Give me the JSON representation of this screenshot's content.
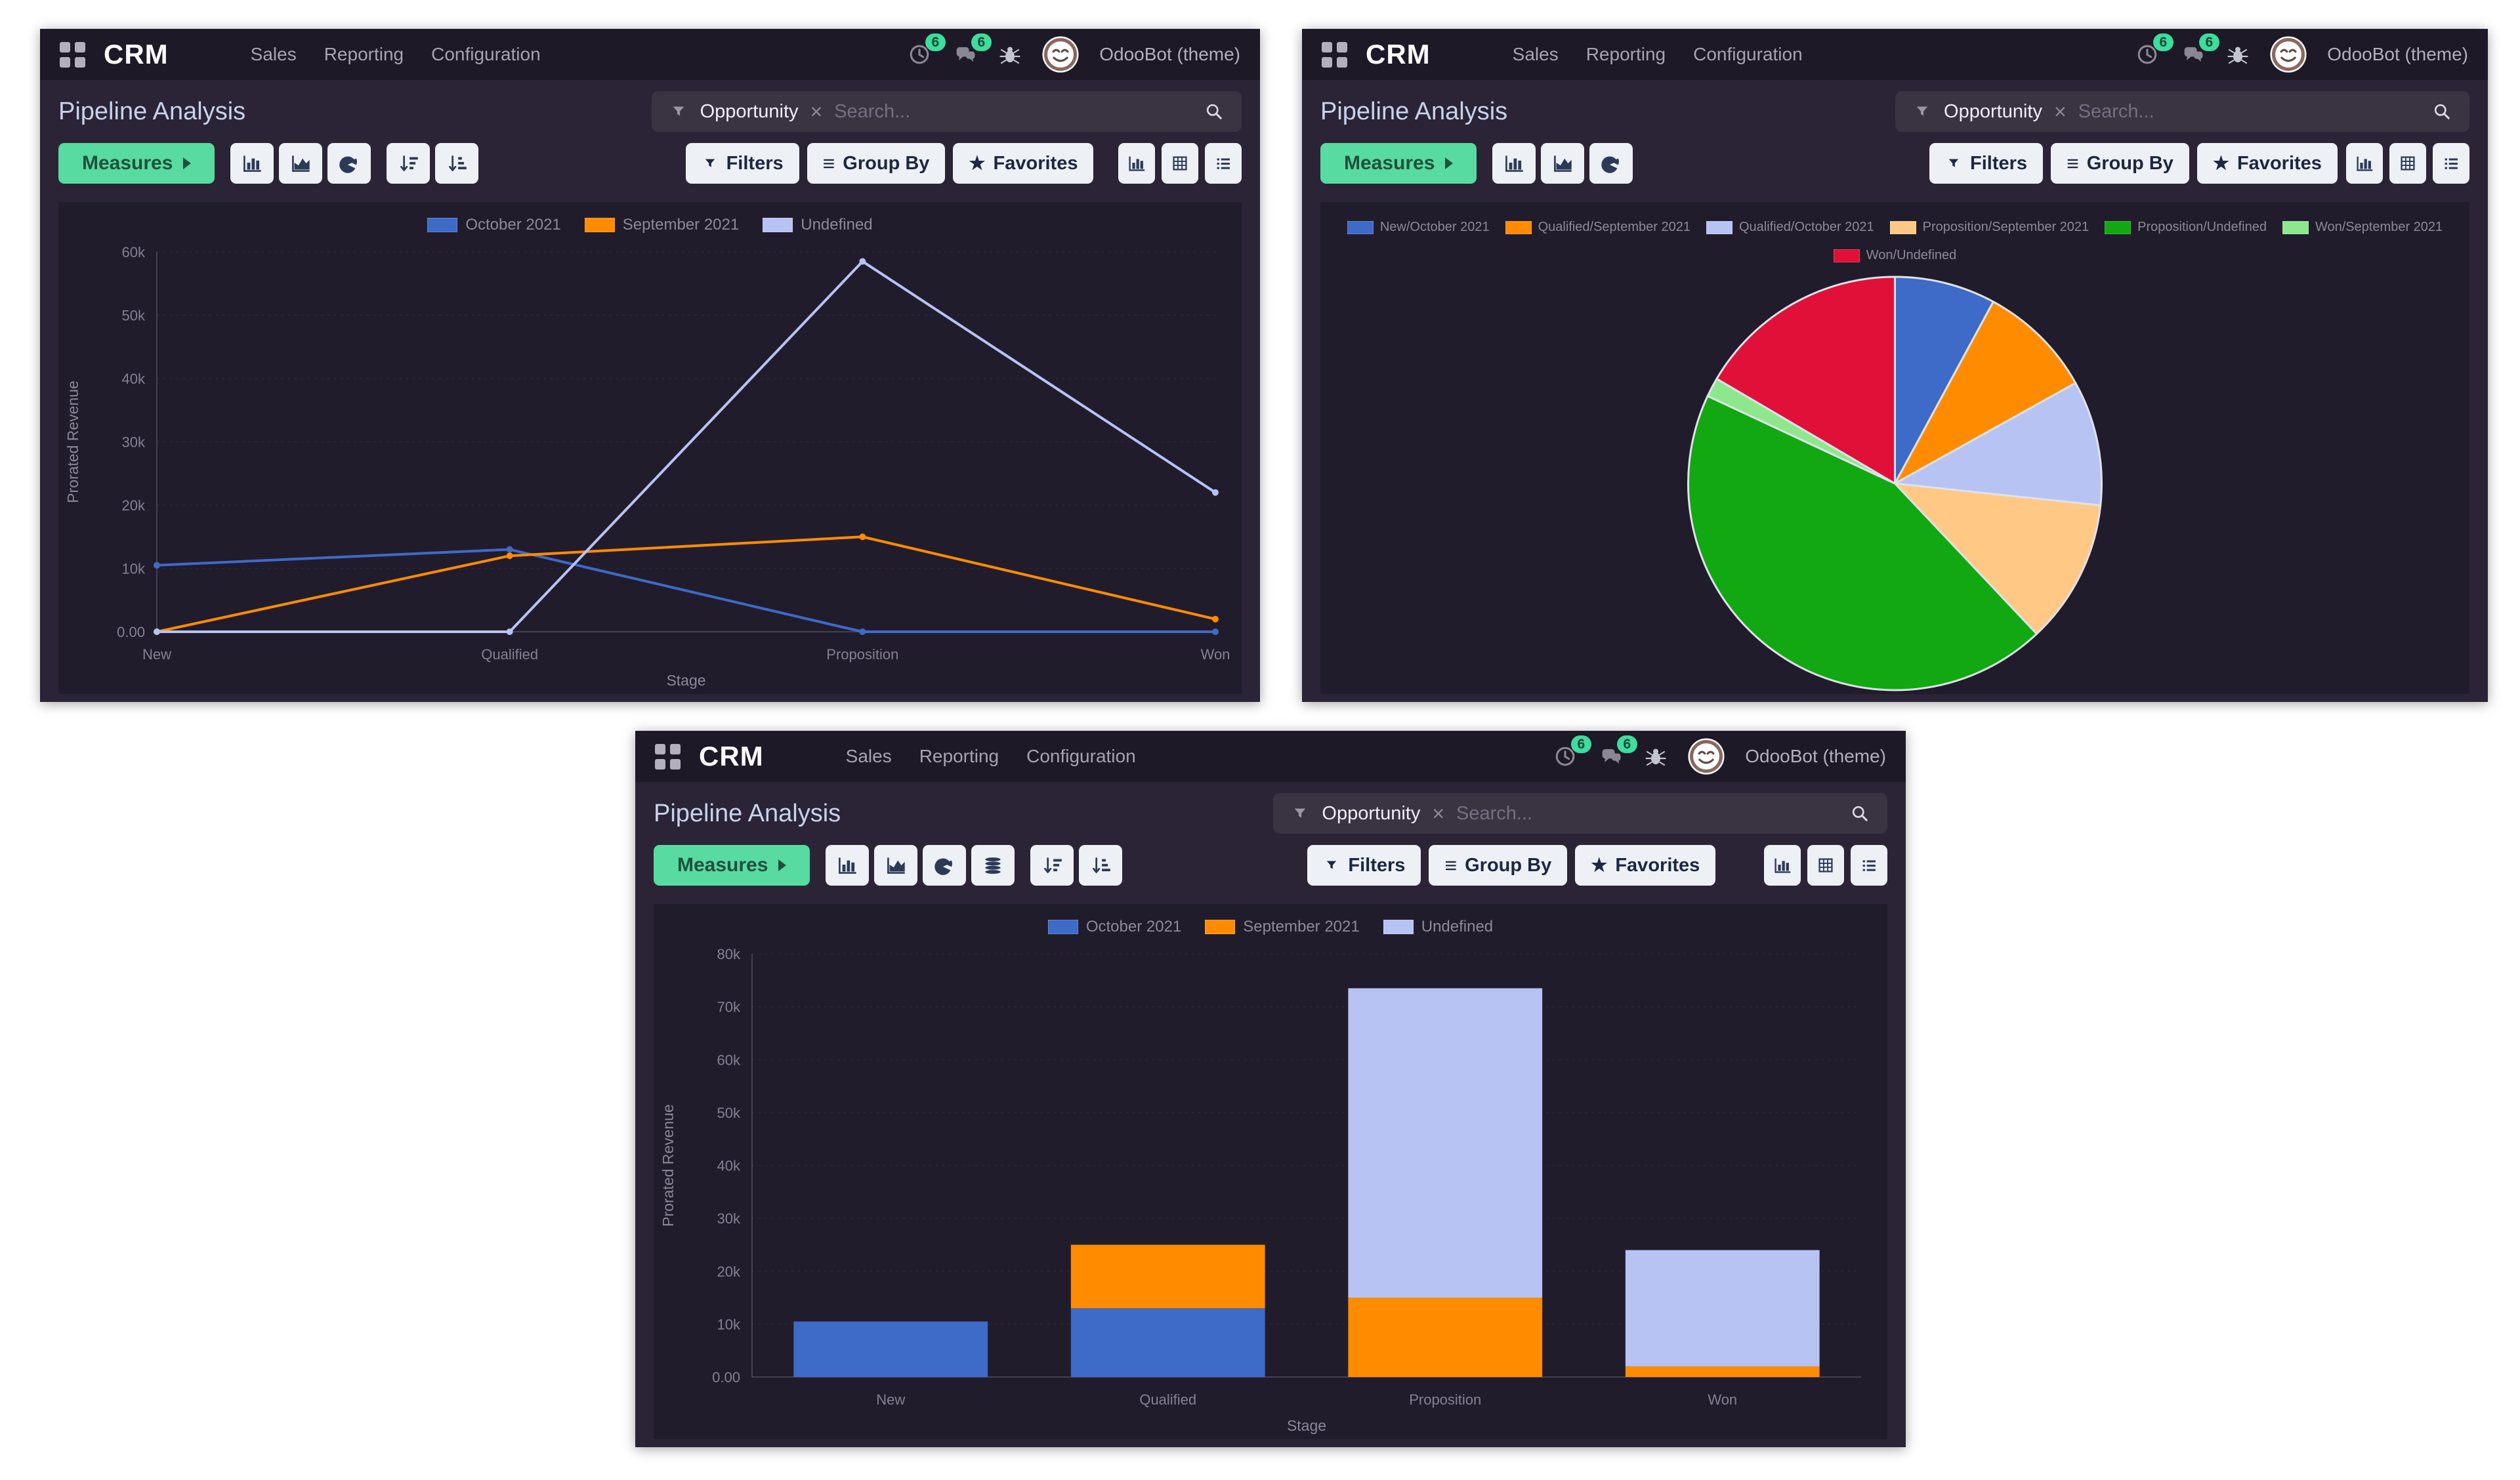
{
  "shared": {
    "app_name": "CRM",
    "menu": [
      "Sales",
      "Reporting",
      "Configuration"
    ],
    "systray": {
      "activity_count": "6",
      "message_count": "6",
      "user_name": "OdooBot (theme)"
    },
    "title": "Pipeline Analysis",
    "search": {
      "facet": "Opportunity",
      "remove_glyph": "×",
      "placeholder": "Search..."
    },
    "buttons": {
      "measures": "Measures",
      "filters": "Filters",
      "group_by": "Group By",
      "favorites": "Favorites"
    },
    "icons": {
      "group_by_glyph": "≡",
      "favorites_glyph": "★",
      "apps": "apps-grid",
      "activities": "clock",
      "messages": "chat-bubbles",
      "debug": "bug",
      "search": "magnifier",
      "view_switcher": [
        "graph-view",
        "pivot-view",
        "list-view"
      ],
      "chart_type_buttons": [
        "bar-chart",
        "area-chart",
        "pie-chart"
      ],
      "extra_buttons_line_window": [
        "sort-desc",
        "sort-asc"
      ],
      "extra_buttons_bar_window": [
        "stacked",
        "sort-desc",
        "sort-asc"
      ]
    },
    "colors": {
      "accent_green": "#57dba0",
      "badge_green": "#3edd9d",
      "navbar_bg": "#1d1927",
      "content_bg": "#2a2436",
      "panel_bg": "#211c2c"
    }
  },
  "chart_data": [
    {
      "id": "line",
      "type": "line",
      "title": "Pipeline Analysis (line view)",
      "xlabel": "Stage",
      "ylabel": "Prorated Revenue",
      "categories": [
        "New",
        "Qualified",
        "Proposition",
        "Won"
      ],
      "series": [
        {
          "name": "October 2021",
          "color": "#3e6ac8",
          "values": [
            10500,
            13000,
            0,
            0
          ]
        },
        {
          "name": "September 2021",
          "color": "#ff8c00",
          "values": [
            0,
            12000,
            15000,
            2000
          ]
        },
        {
          "name": "Undefined",
          "color": "#b7c3f3",
          "values": [
            0,
            0,
            58500,
            22000
          ]
        }
      ],
      "ylim": [
        0,
        60000
      ],
      "ytick_step": 10000,
      "ytick_labels": [
        "0.00",
        "10k",
        "20k",
        "30k",
        "40k",
        "50k",
        "60k"
      ],
      "grid": "horizontal-dashed",
      "legend_position": "top-center"
    },
    {
      "id": "pie",
      "type": "pie",
      "title": "Pipeline Analysis (pie view)",
      "slices": [
        {
          "label": "New/October 2021",
          "color": "#3e6ac8",
          "value": 10500
        },
        {
          "label": "Qualified/September 2021",
          "color": "#ff8c00",
          "value": 12000
        },
        {
          "label": "Qualified/October 2021",
          "color": "#b7c3f3",
          "value": 13000
        },
        {
          "label": "Proposition/September 2021",
          "color": "#ffc885",
          "value": 15000
        },
        {
          "label": "Proposition/Undefined",
          "color": "#12a812",
          "value": 58500
        },
        {
          "label": "Won/September 2021",
          "color": "#8de88d",
          "value": 2000
        },
        {
          "label": "Won/Undefined",
          "color": "#e01039",
          "value": 22000
        }
      ],
      "start_angle_deg": -90,
      "direction": "clockwise",
      "legend_row_break": 6,
      "legend_position": "top-center"
    },
    {
      "id": "bar",
      "type": "bar",
      "stacked": true,
      "title": "Pipeline Analysis (bar view)",
      "xlabel": "Stage",
      "ylabel": "Prorated Revenue",
      "categories": [
        "New",
        "Qualified",
        "Proposition",
        "Won"
      ],
      "series": [
        {
          "name": "October 2021",
          "color": "#3e6ac8",
          "values": [
            10500,
            13000,
            0,
            0
          ]
        },
        {
          "name": "September 2021",
          "color": "#ff8c00",
          "values": [
            0,
            12000,
            15000,
            2000
          ]
        },
        {
          "name": "Undefined",
          "color": "#b7c3f3",
          "values": [
            0,
            0,
            58500,
            22000
          ]
        }
      ],
      "ylim": [
        0,
        80000
      ],
      "ytick_step": 10000,
      "ytick_labels": [
        "0.00",
        "10k",
        "20k",
        "30k",
        "40k",
        "50k",
        "60k",
        "70k",
        "80k"
      ],
      "grid": "horizontal-dashed",
      "legend_position": "top-center"
    }
  ]
}
